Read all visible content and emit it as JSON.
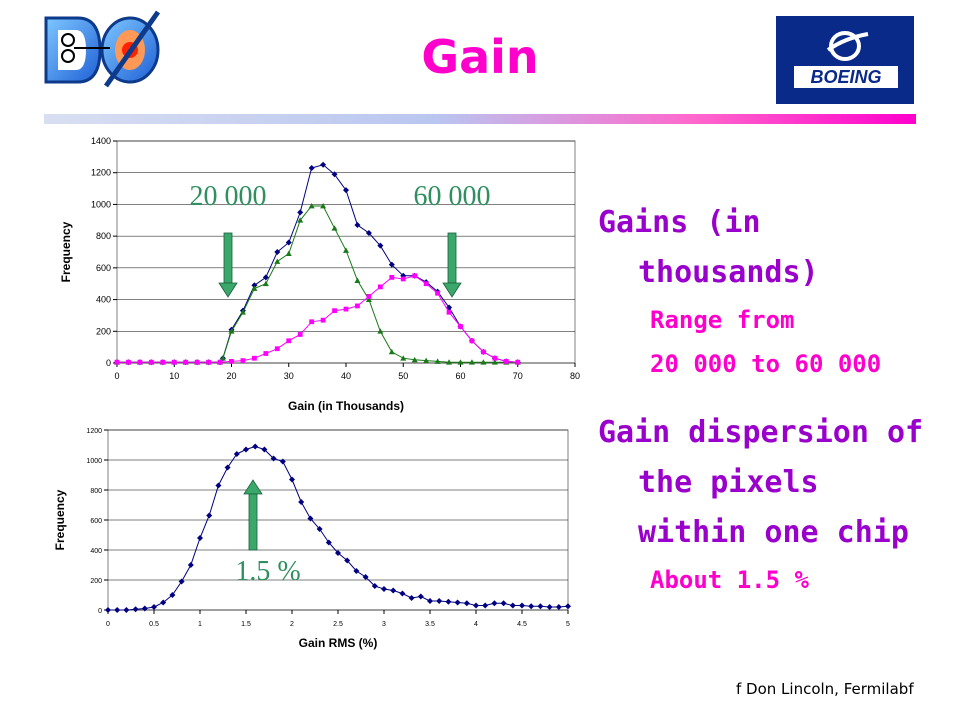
{
  "title": "Gain",
  "logos": {
    "left": "DØ",
    "right": "BOEING"
  },
  "bullets": [
    {
      "line1": "Gains (in",
      "line2": "thousands)",
      "sub1": "Range from",
      "sub2": "20 000 to 60 000"
    },
    {
      "line1": "Gain dispersion of",
      "line2": "the pixels",
      "line3": "within one chip",
      "sub1": "About 1.5 %"
    }
  ],
  "footer": "f Don Lincoln, Fermilabf",
  "colors": {
    "title": "#ff00cc",
    "bullet": "#9900cc",
    "sub": "#ff00cc",
    "arrow": "#3aa86b",
    "navy": "#000080",
    "green": "#1a7a1a",
    "magenta": "#ff00ff"
  },
  "chart_data": [
    {
      "type": "line",
      "title": "",
      "xlabel": "Gain (in Thousands)",
      "ylabel": "Frequency",
      "xlim": [
        0,
        80
      ],
      "ylim": [
        0,
        1400
      ],
      "xticks": [
        0,
        10,
        20,
        30,
        40,
        50,
        60,
        70,
        80
      ],
      "yticks": [
        0,
        200,
        400,
        600,
        800,
        1000,
        1200,
        1400
      ],
      "grid": "horizontal",
      "annotations": [
        "20 000",
        "60 000"
      ],
      "series": [
        {
          "color": "#000080",
          "marker": "diamond",
          "points": [
            [
              0,
              5
            ],
            [
              2,
              5
            ],
            [
              4,
              5
            ],
            [
              6,
              5
            ],
            [
              8,
              5
            ],
            [
              10,
              5
            ],
            [
              12,
              5
            ],
            [
              14,
              5
            ],
            [
              16,
              5
            ],
            [
              18,
              5
            ],
            [
              18.5,
              30
            ],
            [
              20,
              210
            ],
            [
              22,
              330
            ],
            [
              24,
              490
            ],
            [
              26,
              540
            ],
            [
              28,
              700
            ],
            [
              30,
              760
            ],
            [
              32,
              950
            ],
            [
              34,
              1230
            ],
            [
              36,
              1250
            ],
            [
              38,
              1190
            ],
            [
              40,
              1090
            ],
            [
              42,
              870
            ],
            [
              44,
              820
            ],
            [
              46,
              740
            ],
            [
              48,
              620
            ],
            [
              50,
              550
            ],
            [
              52,
              550
            ],
            [
              54,
              510
            ],
            [
              56,
              450
            ],
            [
              58,
              350
            ],
            [
              60,
              230
            ],
            [
              62,
              140
            ],
            [
              64,
              70
            ],
            [
              66,
              30
            ],
            [
              68,
              10
            ],
            [
              70,
              5
            ]
          ]
        },
        {
          "color": "#1a7a1a",
          "marker": "triangle",
          "points": [
            [
              0,
              5
            ],
            [
              2,
              5
            ],
            [
              4,
              5
            ],
            [
              6,
              5
            ],
            [
              8,
              5
            ],
            [
              10,
              5
            ],
            [
              12,
              5
            ],
            [
              14,
              5
            ],
            [
              16,
              5
            ],
            [
              18,
              5
            ],
            [
              18.5,
              30
            ],
            [
              20,
              200
            ],
            [
              22,
              320
            ],
            [
              24,
              470
            ],
            [
              26,
              500
            ],
            [
              28,
              640
            ],
            [
              30,
              690
            ],
            [
              32,
              900
            ],
            [
              34,
              990
            ],
            [
              36,
              990
            ],
            [
              38,
              850
            ],
            [
              40,
              710
            ],
            [
              42,
              520
            ],
            [
              44,
              400
            ],
            [
              46,
              200
            ],
            [
              48,
              70
            ],
            [
              50,
              30
            ],
            [
              52,
              20
            ],
            [
              54,
              15
            ],
            [
              56,
              10
            ],
            [
              58,
              5
            ],
            [
              60,
              5
            ],
            [
              62,
              5
            ],
            [
              64,
              5
            ],
            [
              66,
              5
            ],
            [
              68,
              5
            ],
            [
              70,
              5
            ]
          ]
        },
        {
          "color": "#ff00ff",
          "marker": "square",
          "points": [
            [
              0,
              5
            ],
            [
              2,
              5
            ],
            [
              4,
              5
            ],
            [
              6,
              5
            ],
            [
              8,
              5
            ],
            [
              10,
              5
            ],
            [
              12,
              5
            ],
            [
              14,
              5
            ],
            [
              16,
              5
            ],
            [
              18,
              5
            ],
            [
              20,
              10
            ],
            [
              22,
              15
            ],
            [
              24,
              30
            ],
            [
              26,
              60
            ],
            [
              28,
              90
            ],
            [
              30,
              140
            ],
            [
              32,
              180
            ],
            [
              34,
              260
            ],
            [
              36,
              270
            ],
            [
              38,
              330
            ],
            [
              40,
              340
            ],
            [
              42,
              360
            ],
            [
              44,
              420
            ],
            [
              46,
              480
            ],
            [
              48,
              540
            ],
            [
              50,
              530
            ],
            [
              52,
              550
            ],
            [
              54,
              500
            ],
            [
              56,
              440
            ],
            [
              58,
              320
            ],
            [
              60,
              230
            ],
            [
              62,
              140
            ],
            [
              64,
              70
            ],
            [
              66,
              30
            ],
            [
              68,
              10
            ],
            [
              70,
              5
            ]
          ]
        }
      ]
    },
    {
      "type": "line",
      "title": "",
      "xlabel": "Gain RMS (%)",
      "ylabel": "Frequency",
      "xlim": [
        0,
        5
      ],
      "ylim": [
        0,
        1200
      ],
      "xticks": [
        0,
        0.5,
        1,
        1.5,
        2,
        2.5,
        3,
        3.5,
        4,
        4.5,
        5
      ],
      "yticks": [
        0,
        200,
        400,
        600,
        800,
        1000,
        1200
      ],
      "grid": "horizontal",
      "annotations": [
        "1.5 %"
      ],
      "series": [
        {
          "color": "#000080",
          "marker": "diamond",
          "points": [
            [
              0,
              0
            ],
            [
              0.1,
              0
            ],
            [
              0.2,
              0
            ],
            [
              0.3,
              5
            ],
            [
              0.4,
              10
            ],
            [
              0.5,
              20
            ],
            [
              0.6,
              50
            ],
            [
              0.7,
              100
            ],
            [
              0.8,
              190
            ],
            [
              0.9,
              300
            ],
            [
              1.0,
              480
            ],
            [
              1.1,
              630
            ],
            [
              1.2,
              830
            ],
            [
              1.3,
              950
            ],
            [
              1.4,
              1040
            ],
            [
              1.5,
              1070
            ],
            [
              1.6,
              1090
            ],
            [
              1.7,
              1070
            ],
            [
              1.8,
              1010
            ],
            [
              1.9,
              990
            ],
            [
              2.0,
              870
            ],
            [
              2.1,
              720
            ],
            [
              2.2,
              610
            ],
            [
              2.3,
              540
            ],
            [
              2.4,
              450
            ],
            [
              2.5,
              380
            ],
            [
              2.6,
              330
            ],
            [
              2.7,
              260
            ],
            [
              2.8,
              220
            ],
            [
              2.9,
              160
            ],
            [
              3.0,
              140
            ],
            [
              3.1,
              130
            ],
            [
              3.2,
              110
            ],
            [
              3.3,
              80
            ],
            [
              3.4,
              90
            ],
            [
              3.5,
              60
            ],
            [
              3.6,
              60
            ],
            [
              3.7,
              55
            ],
            [
              3.8,
              50
            ],
            [
              3.9,
              45
            ],
            [
              4.0,
              30
            ],
            [
              4.1,
              30
            ],
            [
              4.2,
              45
            ],
            [
              4.3,
              45
            ],
            [
              4.4,
              30
            ],
            [
              4.5,
              30
            ],
            [
              4.6,
              25
            ],
            [
              4.7,
              25
            ],
            [
              4.8,
              20
            ],
            [
              4.9,
              20
            ],
            [
              5.0,
              25
            ]
          ]
        }
      ]
    }
  ]
}
